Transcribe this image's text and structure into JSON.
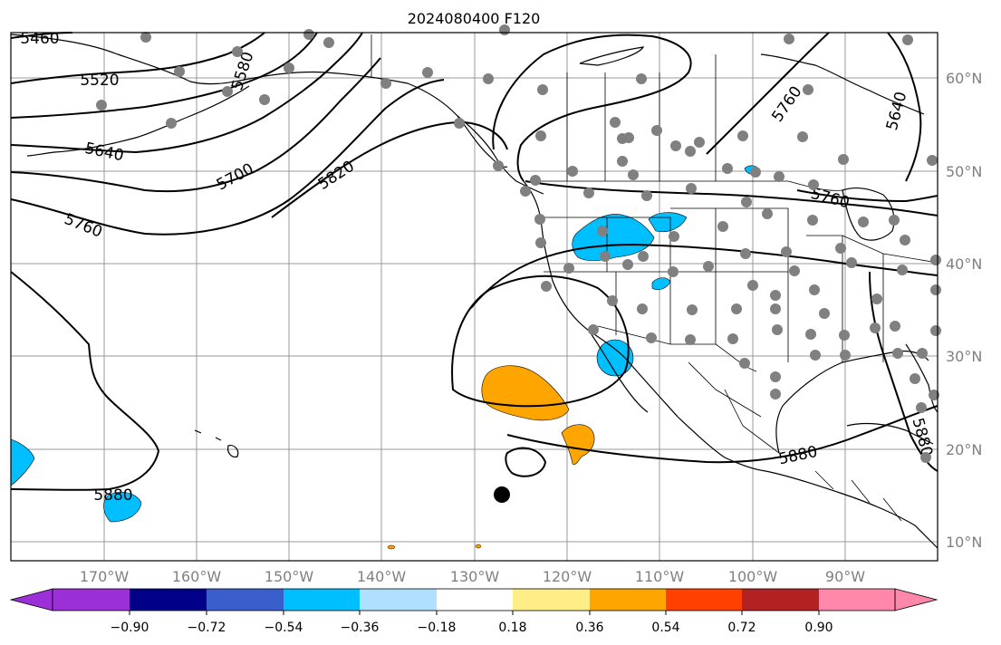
{
  "title": "2024080400 F120",
  "map": {
    "lon_labels": [
      "170°W",
      "160°W",
      "150°W",
      "140°W",
      "130°W",
      "120°W",
      "110°W",
      "100°W",
      "90°W"
    ],
    "lat_labels": [
      "60°N",
      "50°N",
      "40°N",
      "30°N",
      "20°N",
      "10°N"
    ],
    "contour_labels": [
      "5460",
      "5520",
      "5580",
      "5640",
      "5700",
      "5760",
      "5820",
      "5880",
      "5760",
      "5640",
      "5760",
      "5880",
      "5880"
    ],
    "colors": {
      "shade_negative": "#00bfff",
      "shade_positive": "#ffa500",
      "stations": "#808080",
      "marker": "#000000"
    }
  },
  "colorbar": {
    "ticks": [
      "−0.90",
      "−0.72",
      "−0.54",
      "−0.36",
      "−0.18",
      "0.18",
      "0.36",
      "0.54",
      "0.72",
      "0.90"
    ],
    "colors": [
      "#9b30d8",
      "#000088",
      "#3a5fcd",
      "#00bfff",
      "#b0e0ff",
      "#ffffff",
      "#ffee88",
      "#ffa500",
      "#ff4000",
      "#b22222",
      "#ff88aa"
    ]
  }
}
